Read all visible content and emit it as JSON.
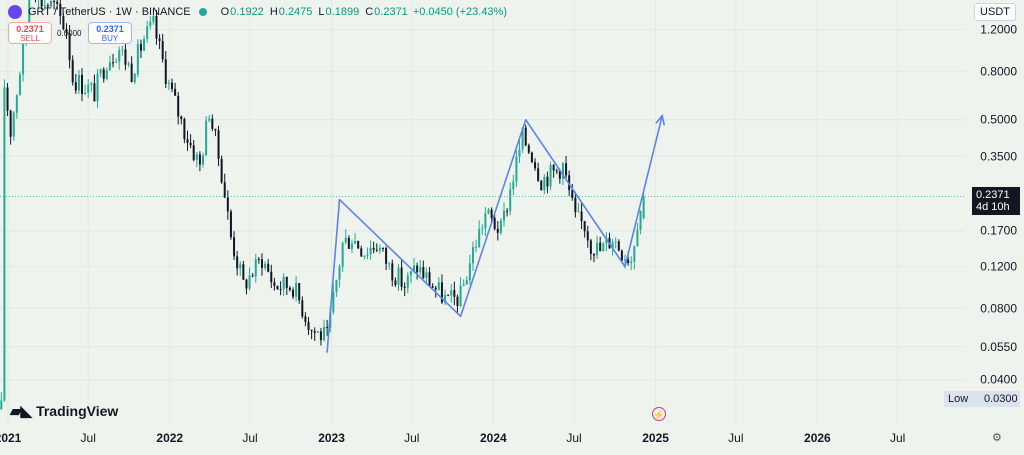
{
  "header": {
    "title": "GRT / TetherUS · 1W · BINANCE",
    "ohlc": [
      {
        "k": "O",
        "v": "0.1922"
      },
      {
        "k": "H",
        "v": "0.2475"
      },
      {
        "k": "L",
        "v": "0.1899"
      },
      {
        "k": "C",
        "v": "0.2371"
      },
      {
        "k": "",
        "v": "+0.0450 (+23.43%)"
      }
    ]
  },
  "trade": {
    "sell_price": "0.2371",
    "sell_label": "SELL",
    "buy_price": "0.2371",
    "buy_label": "BUY",
    "spread": "0.0000"
  },
  "currency": "USDT",
  "price_tag": {
    "price": "0.2371",
    "countdown": "4d 10h"
  },
  "low_tag": {
    "label": "Low",
    "value": "0.0300"
  },
  "brand": "TradingView",
  "colors": {
    "up": "#22ab94",
    "down": "#131722",
    "drawing": "#5b83f0",
    "background": "#eef3ee"
  },
  "chart_data": {
    "type": "candlestick",
    "title": "GRT / TetherUS · 1W · BINANCE",
    "y_scale": "log",
    "ylim": [
      0.026,
      1.6
    ],
    "y_ticks": [
      "1.2000",
      "0.8000",
      "0.5000",
      "0.3500",
      "0.1700",
      "0.1200",
      "0.0800",
      "0.0550",
      "0.0400"
    ],
    "x_ticks": [
      "2021",
      "Jul",
      "2022",
      "Jul",
      "2023",
      "Jul",
      "2024",
      "Jul",
      "2025",
      "Jul",
      "2026",
      "Jul"
    ],
    "x_range": [
      "2020-12-14",
      "2026-11-30"
    ],
    "anchors": [
      [
        "2020-12-17",
        0.03
      ],
      [
        "2020-12-24",
        0.7
      ],
      [
        "2021-01-07",
        0.45
      ],
      [
        "2021-02-11",
        1.2
      ],
      [
        "2021-02-18",
        2.2
      ],
      [
        "2021-03-11",
        1.6
      ],
      [
        "2021-04-15",
        1.5
      ],
      [
        "2021-05-13",
        1.2
      ],
      [
        "2021-05-27",
        0.75
      ],
      [
        "2021-07-15",
        0.65
      ],
      [
        "2021-08-12",
        0.9
      ],
      [
        "2021-09-09",
        1.0
      ],
      [
        "2021-10-07",
        0.8
      ],
      [
        "2021-11-04",
        1.1
      ],
      [
        "2021-11-25",
        1.25
      ],
      [
        "2021-12-30",
        0.7
      ],
      [
        "2022-02-03",
        0.45
      ],
      [
        "2022-03-10",
        0.32
      ],
      [
        "2022-03-31",
        0.55
      ],
      [
        "2022-04-28",
        0.3
      ],
      [
        "2022-05-19",
        0.16
      ],
      [
        "2022-06-16",
        0.1
      ],
      [
        "2022-07-28",
        0.13
      ],
      [
        "2022-08-25",
        0.1
      ],
      [
        "2022-10-06",
        0.1
      ],
      [
        "2022-11-17",
        0.065
      ],
      [
        "2022-12-22",
        0.06
      ],
      [
        "2023-01-26",
        0.15
      ],
      [
        "2023-02-16",
        0.16
      ],
      [
        "2023-03-16",
        0.14
      ],
      [
        "2023-04-13",
        0.15
      ],
      [
        "2023-05-11",
        0.12
      ],
      [
        "2023-06-15",
        0.1
      ],
      [
        "2023-07-13",
        0.12
      ],
      [
        "2023-08-17",
        0.1
      ],
      [
        "2023-09-21",
        0.085
      ],
      [
        "2023-10-19",
        0.09
      ],
      [
        "2023-11-16",
        0.14
      ],
      [
        "2023-12-14",
        0.2
      ],
      [
        "2024-01-18",
        0.17
      ],
      [
        "2024-02-15",
        0.29
      ],
      [
        "2024-03-07",
        0.42
      ],
      [
        "2024-03-28",
        0.36
      ],
      [
        "2024-04-18",
        0.28
      ],
      [
        "2024-05-16",
        0.3
      ],
      [
        "2024-06-06",
        0.32
      ],
      [
        "2024-07-04",
        0.19
      ],
      [
        "2024-07-25",
        0.18
      ],
      [
        "2024-08-08",
        0.15
      ],
      [
        "2024-08-29",
        0.14
      ],
      [
        "2024-09-26",
        0.16
      ],
      [
        "2024-10-17",
        0.14
      ],
      [
        "2024-11-07",
        0.13
      ],
      [
        "2024-11-21",
        0.19
      ],
      [
        "2024-12-05",
        0.2371
      ]
    ],
    "drawing": {
      "points": [
        [
          "2022-12-22",
          0.052
        ],
        [
          "2023-01-19",
          0.23
        ],
        [
          "2023-10-19",
          0.074
        ],
        [
          "2024-03-14",
          0.5
        ],
        [
          "2024-10-24",
          0.12
        ],
        [
          "2025-01-16",
          0.52
        ]
      ]
    }
  }
}
